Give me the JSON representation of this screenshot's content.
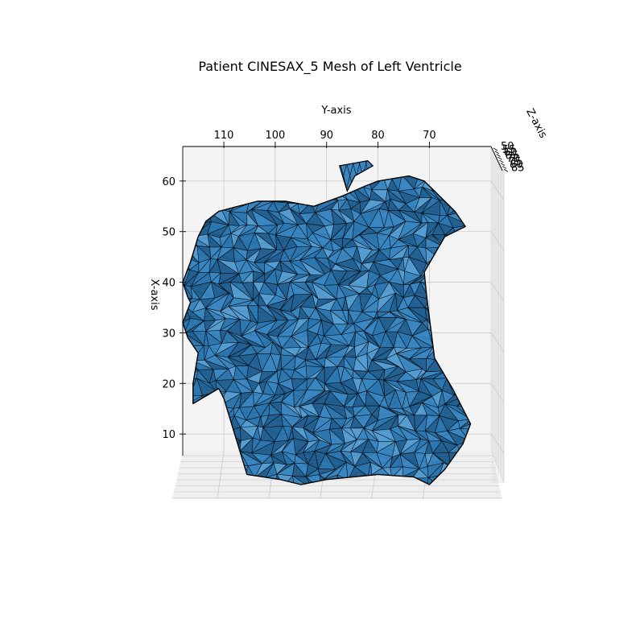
{
  "chart_data": {
    "type": "surface3d",
    "title": "Patient CINESAX_5 Mesh of Left Ventricle",
    "xlabel": "X-axis",
    "ylabel": "Y-axis",
    "zlabel": "Z-axis",
    "x_ticks": [
      "10",
      "20",
      "30",
      "40",
      "50",
      "60"
    ],
    "y_ticks": [
      "110",
      "100",
      "90",
      "80",
      "70"
    ],
    "z_ticks": [
      "50",
      "55",
      "60",
      "65",
      "70",
      "75",
      "80",
      "85"
    ],
    "xlim": [
      0,
      63
    ],
    "ylim": [
      58,
      118
    ],
    "grid": true,
    "mesh": {
      "face_color": "#3a86c1",
      "edge_color": "#000000",
      "outline": [
        [
          16,
          116.0
        ],
        [
          19,
          111.0
        ],
        [
          17,
          110.0
        ],
        [
          2,
          105.5
        ],
        [
          1,
          99.0
        ],
        [
          0,
          95.0
        ],
        [
          1,
          90.0
        ],
        [
          2,
          80.0
        ],
        [
          1.5,
          73.0
        ],
        [
          0,
          70.0
        ],
        [
          3,
          67.0
        ],
        [
          8,
          63.5
        ],
        [
          12,
          62.0
        ],
        [
          16,
          64.0
        ],
        [
          19,
          65.5
        ],
        [
          25,
          69.0
        ],
        [
          33,
          70.0
        ],
        [
          37,
          70.5
        ],
        [
          42,
          71.0
        ],
        [
          49,
          67.0
        ],
        [
          51,
          63.0
        ],
        [
          54,
          65.0
        ],
        [
          56,
          67.0
        ],
        [
          58,
          69.0
        ],
        [
          60,
          71.0
        ],
        [
          61,
          74.0
        ],
        [
          60,
          80.0
        ],
        [
          59,
          82.5
        ],
        [
          57,
          87.0
        ],
        [
          55,
          92.5
        ],
        [
          56,
          98.0
        ],
        [
          56,
          103.5
        ],
        [
          54,
          111.0
        ],
        [
          52,
          113.5
        ],
        [
          49,
          115.0
        ],
        [
          44,
          116.5
        ],
        [
          40,
          118.0
        ],
        [
          37,
          117.0
        ],
        [
          36,
          116.5
        ],
        [
          32,
          118.0
        ],
        [
          29,
          117.0
        ],
        [
          26,
          115.0
        ],
        [
          20,
          116.0
        ]
      ],
      "cap_outline": [
        [
          63,
          87.5
        ],
        [
          64,
          82.0
        ],
        [
          63,
          81.0
        ],
        [
          61,
          84.5
        ],
        [
          58,
          86.0
        ]
      ]
    }
  }
}
